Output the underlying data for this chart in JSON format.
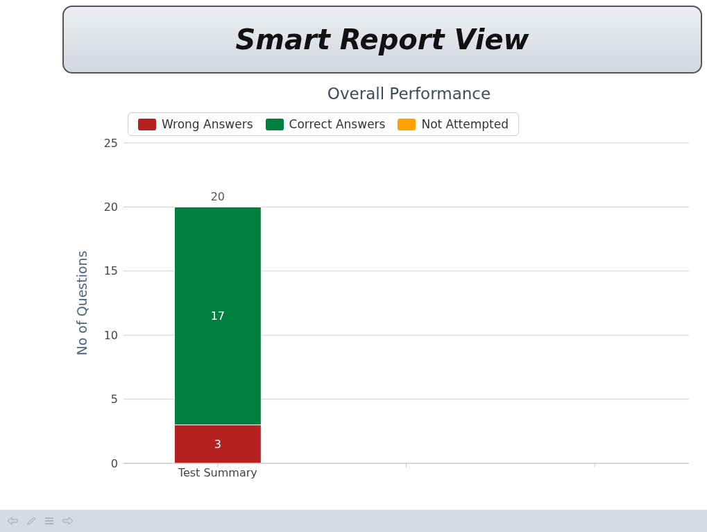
{
  "chart_data": {
    "type": "bar",
    "title": "Smart Report View",
    "subtitle": "Overall Performance",
    "ylabel": "No of Questions",
    "categories": [
      "Test Summary",
      null,
      null
    ],
    "series": [
      {
        "name": "Wrong Answers",
        "color": "#b52020",
        "values": [
          3,
          null,
          null
        ],
        "value_labels": [
          "3",
          null,
          null
        ]
      },
      {
        "name": "Correct Answers",
        "color": "#00803f",
        "values": [
          17,
          null,
          null
        ],
        "value_labels": [
          "17",
          null,
          null
        ]
      },
      {
        "name": "Not Attempted",
        "color": "#ffa200",
        "values": [
          0,
          null,
          null
        ],
        "value_labels": [
          null,
          null,
          null
        ]
      }
    ],
    "stacked": true,
    "totals": [
      "20",
      null,
      null
    ],
    "ylim": [
      0,
      25
    ],
    "yticks": [
      0,
      5,
      10,
      15,
      20,
      25
    ],
    "grid": "y",
    "legend": "top"
  }
}
